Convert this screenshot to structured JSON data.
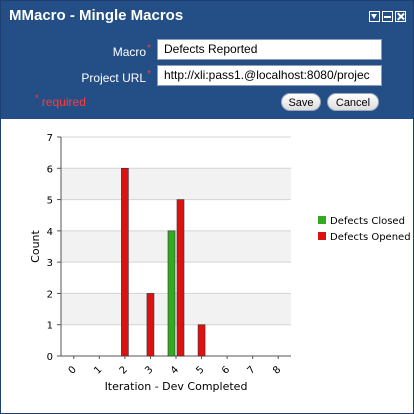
{
  "window": {
    "title": "MMacro - Mingle Macros"
  },
  "form": {
    "macro_label": "Macro",
    "macro_value": "Defects Reported",
    "project_url_label": "Project URL",
    "project_url_value": "http://xli:pass1.@localhost:8080/projec",
    "required_mark": "*",
    "required_text": "required"
  },
  "buttons": {
    "save": "Save",
    "cancel": "Cancel"
  },
  "colors": {
    "header": "#244f86",
    "closed": "#33aa22",
    "opened": "#dd1111",
    "required": "#ff3b3b"
  },
  "chart_data": {
    "type": "bar",
    "xlabel": "Iteration - Dev Completed",
    "ylabel": "Count",
    "categories": [
      "0",
      "1",
      "2",
      "3",
      "4",
      "5",
      "6",
      "7",
      "8"
    ],
    "ylim": [
      0,
      7
    ],
    "yticks": [
      "0",
      "1",
      "2",
      "3",
      "4",
      "5",
      "6",
      "7"
    ],
    "series": [
      {
        "name": "Defects Closed",
        "color": "#33aa22",
        "values": [
          0,
          0,
          0,
          0,
          4,
          0,
          0,
          0,
          0
        ]
      },
      {
        "name": "Defects Opened",
        "color": "#dd1111",
        "values": [
          0,
          0,
          6,
          2,
          5,
          1,
          0,
          0,
          0
        ]
      }
    ],
    "legend": [
      "Defects Closed",
      "Defects Opened"
    ],
    "legend_position": "right",
    "grid": true
  }
}
